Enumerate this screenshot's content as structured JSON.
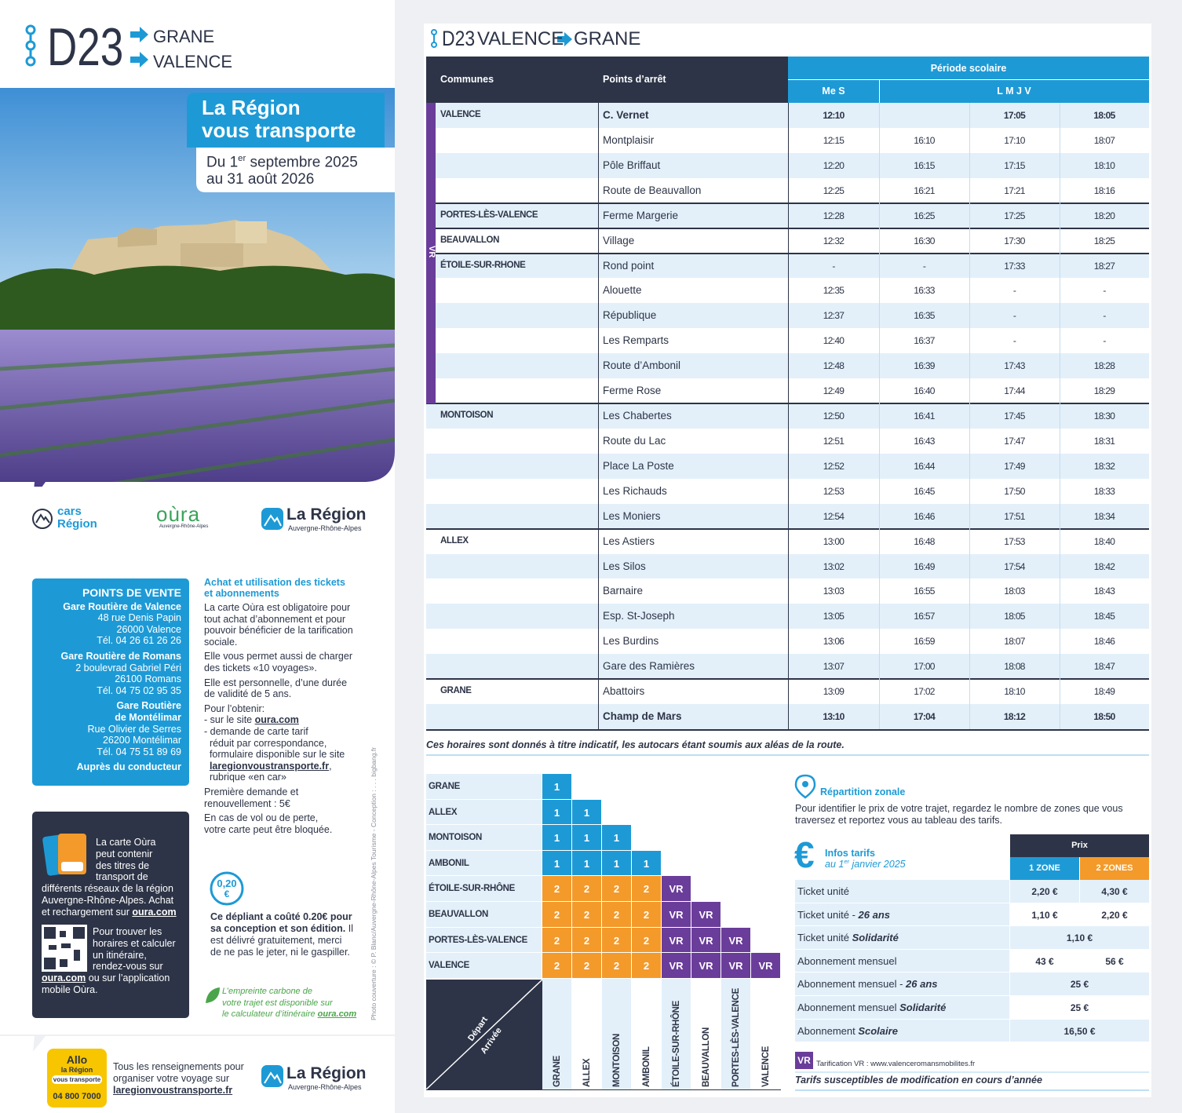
{
  "header": {
    "line": "D23",
    "destinations": [
      "GRANE",
      "VALENCE"
    ]
  },
  "banner": {
    "title": [
      "La Région",
      "vous transporte"
    ],
    "validity": [
      [
        "Du 1",
        {
          "sup": "er"
        },
        " septembre 2025"
      ],
      "au 31 août 2026"
    ]
  },
  "logos": {
    "cars": [
      "cars",
      "Région"
    ],
    "oura": "oùra",
    "oura_sub": "Auvergne-Rhône-Alpes",
    "region": "La Région",
    "region_sub": "Auvergne-Rhône-Alpes"
  },
  "sales": {
    "title": "POINTS DE VENTE",
    "sections": [
      {
        "name": [
          "Gare Routière de Valence"
        ],
        "lines": [
          "48 rue Denis Papin",
          "26000 Valence",
          "Tél. 04 26 61 26 26"
        ]
      },
      {
        "name": [
          "Gare Routière de Romans"
        ],
        "lines": [
          "2 boulevrad Gabriel Péri",
          "26100 Romans",
          "Tél. 04 75 02 95 35"
        ]
      },
      {
        "name": [
          "Gare Routière",
          "de Montélimar"
        ],
        "lines": [
          "Rue Olivier de Serres",
          "26200 Montélimar",
          "Tél. 04 75 51 89 69"
        ]
      }
    ],
    "footer": "Auprès du conducteur"
  },
  "purchase": {
    "title": [
      "Achat et utilisation des tickets",
      "et abonnements"
    ],
    "paragraphs": [
      [
        "La carte Oùra est obligatoire pour",
        "tout achat d’abonnement et pour",
        "pouvoir bénéficier de la tarification",
        "sociale."
      ],
      [
        "Elle vous permet aussi de charger",
        "des tickets «10 voyages»."
      ],
      [
        "Elle est personnelle, d’une durée",
        "de validité de 5 ans."
      ],
      [
        "Pour l’obtenir:",
        [
          "- sur le site ",
          {
            "u": "oura.com"
          }
        ],
        "- demande de carte tarif",
        "  réduit par correspondance,",
        "  formulaire disponible sur le site",
        [
          "  ",
          {
            "u": "laregionvoustransporte.fr"
          },
          ","
        ],
        "  rubrique «en car»"
      ],
      [
        "Première demande et",
        "renouvellement : 5€"
      ],
      [
        "En cas de vol ou de perte,",
        "votre carte peut être bloquée."
      ]
    ]
  },
  "card_box": {
    "top": [
      "La carte Oùra",
      "peut contenir",
      "des titres de",
      "transport de"
    ],
    "middle": [
      "différents réseaux de la région",
      "Auvergne-Rhône-Alpes. Achat",
      [
        "et rechargement sur ",
        {
          "u": "oura.com"
        }
      ]
    ],
    "qr": [
      "Pour trouver les",
      "horaires et calculer",
      "un itinéraire,",
      "rendez-vous sur"
    ],
    "bottom": [
      [
        {
          "u": "oura.com"
        },
        " ou sur l’application"
      ],
      "mobile Oùra."
    ]
  },
  "cost": {
    "amount": "0,20",
    "currency": "€",
    "lines": [
      [
        {
          "b": "Ce dépliant a coûté 0.20€ pour"
        }
      ],
      [
        {
          "b": "sa conception et son édition."
        },
        " Il"
      ],
      "est délivré gratuitement, merci",
      "de ne pas le jeter, ni le gaspiller."
    ]
  },
  "carbon": {
    "lines": [
      "L’empreinte carbone de",
      "votre trajet est disponible sur",
      [
        "le calculateur d’itinéraire ",
        {
          "u": "oura.com"
        }
      ]
    ]
  },
  "credit": "Photo couverture : © P. Blanc/Auvergne-Rhône-Alpes Tourisme - Conception : . . . bigbang.fr",
  "allo": {
    "badge": [
      "Allo",
      "la Région",
      "vous transporte"
    ],
    "phone": "04 800 7000",
    "lines": [
      "Tous les renseignements pour",
      "organiser votre voyage sur",
      [
        {
          "u": "laregionvoustransporte.fr"
        }
      ]
    ]
  },
  "footer_logo": {
    "name": "La Région",
    "sub": "Auvergne-Rhône-Alpes"
  },
  "timetable": {
    "title": {
      "line": "D23",
      "from": "VALENCE",
      "to": "GRANE"
    },
    "columns": {
      "commune": "Communes",
      "stop": "Points d’arrêt",
      "period": "Période scolaire",
      "days": [
        "Me S",
        "L M J V"
      ]
    },
    "vr_label": "VR",
    "rows": [
      {
        "commune": "VALENCE",
        "stop": "C. Vernet",
        "times": [
          "12:10",
          null,
          "17:05",
          "18:05"
        ]
      },
      {
        "stop": "Montplaisir",
        "times": [
          "12:15",
          "16:10",
          "17:10",
          "18:07"
        ]
      },
      {
        "stop": "Pôle Briffaut",
        "times": [
          "12:20",
          "16:15",
          "17:15",
          "18:10"
        ]
      },
      {
        "stop": "Route de Beauvallon",
        "times": [
          "12:25",
          "16:21",
          "17:21",
          "18:16"
        ]
      },
      {
        "commune": "PORTES-LÈS-VALENCE",
        "stop": "Ferme Margerie",
        "times": [
          "12:28",
          "16:25",
          "17:25",
          "18:20"
        ]
      },
      {
        "commune": "BEAUVALLON",
        "stop": "Village",
        "times": [
          "12:32",
          "16:30",
          "17:30",
          "18:25"
        ]
      },
      {
        "commune": "ÉTOILE-SUR-RHONE",
        "stop": "Rond point",
        "times": [
          "-",
          "-",
          "17:33",
          "18:27"
        ]
      },
      {
        "stop": "Alouette",
        "times": [
          "12:35",
          "16:33",
          "-",
          "-"
        ]
      },
      {
        "stop": "République",
        "times": [
          "12:37",
          "16:35",
          "-",
          "-"
        ]
      },
      {
        "stop": "Les Remparts",
        "times": [
          "12:40",
          "16:37",
          "-",
          "-"
        ]
      },
      {
        "stop": "Route d’Ambonil",
        "times": [
          "12:48",
          "16:39",
          "17:43",
          "18:28"
        ]
      },
      {
        "stop": "Ferme Rose",
        "times": [
          "12:49",
          "16:40",
          "17:44",
          "18:29"
        ]
      },
      {
        "commune": "MONTOISON",
        "stop": "Les Chabertes",
        "times": [
          "12:50",
          "16:41",
          "17:45",
          "18:30"
        ]
      },
      {
        "stop": "Route du Lac",
        "times": [
          "12:51",
          "16:43",
          "17:47",
          "18:31"
        ]
      },
      {
        "stop": "Place La Poste",
        "times": [
          "12:52",
          "16:44",
          "17:49",
          "18:32"
        ]
      },
      {
        "stop": "Les Richauds",
        "times": [
          "12:53",
          "16:45",
          "17:50",
          "18:33"
        ]
      },
      {
        "stop": "Les Moniers",
        "times": [
          "12:54",
          "16:46",
          "17:51",
          "18:34"
        ]
      },
      {
        "commune": "ALLEX",
        "stop": "Les Astiers",
        "times": [
          "13:00",
          "16:48",
          "17:53",
          "18:40"
        ]
      },
      {
        "stop": "Les Silos",
        "times": [
          "13:02",
          "16:49",
          "17:54",
          "18:42"
        ]
      },
      {
        "stop": "Barnaire",
        "times": [
          "13:03",
          "16:55",
          "18:03",
          "18:43"
        ]
      },
      {
        "stop": "Esp. St-Joseph",
        "times": [
          "13:05",
          "16:57",
          "18:05",
          "18:45"
        ]
      },
      {
        "stop": "Les Burdins",
        "times": [
          "13:06",
          "16:59",
          "18:07",
          "18:46"
        ]
      },
      {
        "stop": "Gare des Ramières",
        "times": [
          "13:07",
          "17:00",
          "18:08",
          "18:47"
        ]
      },
      {
        "commune": "GRANE",
        "stop": "Abattoirs",
        "times": [
          "13:09",
          "17:02",
          "18:10",
          "18:49"
        ]
      },
      {
        "stop": "Champ de Mars",
        "times": [
          "13:10",
          "17:04",
          "18:12",
          "18:50"
        ]
      }
    ],
    "note": "Ces horaires sont donnés à titre indicatif, les autocars étant soumis aux aléas de la route."
  },
  "zones": {
    "colors": {
      "1": "#1d9ad6",
      "2": "#f39a2b",
      "VR": "#6a3d9a"
    },
    "rows": [
      {
        "name": "GRANE",
        "cells": [
          "1"
        ]
      },
      {
        "name": "ALLEX",
        "cells": [
          "1",
          "1"
        ]
      },
      {
        "name": "MONTOISON",
        "cells": [
          "1",
          "1",
          "1"
        ]
      },
      {
        "name": "AMBONIL",
        "cells": [
          "1",
          "1",
          "1",
          "1"
        ]
      },
      {
        "name": "ÉTOILE-SUR-RHÔNE",
        "cells": [
          "2",
          "2",
          "2",
          "2",
          "VR"
        ]
      },
      {
        "name": "BEAUVALLON",
        "cells": [
          "2",
          "2",
          "2",
          "2",
          "VR",
          "VR"
        ]
      },
      {
        "name": "PORTES-LÈS-VALENCE",
        "cells": [
          "2",
          "2",
          "2",
          "2",
          "VR",
          "VR",
          "VR"
        ]
      },
      {
        "name": "VALENCE",
        "cells": [
          "2",
          "2",
          "2",
          "2",
          "VR",
          "VR",
          "VR",
          "VR"
        ]
      }
    ],
    "corner": [
      "Départ",
      "Arrivée"
    ],
    "columns": [
      "GRANE",
      "ALLEX",
      "MONTOISON",
      "AMBONIL",
      "ÉTOILE-SUR-RHÔNE",
      "BEAUVALLON",
      "PORTES-LÈS-VALENCE",
      "VALENCE"
    ]
  },
  "fares": {
    "zonal_title": "Répartition zonale",
    "zonal_text": [
      "Pour identifier le prix de votre trajet, regardez le nombre de zones que vous",
      "traversez et reportez vous au tableau des tarifs."
    ],
    "info_symbol": "€",
    "info_title": "Infos tarifs",
    "info_date": [
      "au 1",
      {
        "sup": "er"
      },
      " janvier 2025"
    ],
    "price_header": "Prix",
    "zone_headers": [
      "1 ZONE",
      "2 ZONES"
    ],
    "rows": [
      {
        "label": [
          "Ticket unité"
        ],
        "prices": [
          "2,20 €",
          "4,30 €"
        ]
      },
      {
        "label": [
          "Ticket unité - ",
          {
            "i": "26 ans"
          }
        ],
        "prices": [
          "1,10 €",
          "2,20 €"
        ]
      },
      {
        "label": [
          "Ticket unité ",
          {
            "i": "Solidarité"
          }
        ],
        "prices": [
          "1,10 €"
        ]
      },
      {
        "label": [
          "Abonnement mensuel"
        ],
        "prices": [
          "43 €",
          "56 €"
        ]
      },
      {
        "label": [
          "Abonnement mensuel - ",
          {
            "i": "26 ans"
          }
        ],
        "prices": [
          "25 €"
        ]
      },
      {
        "label": [
          "Abonnement mensuel ",
          {
            "i": "Solidarité"
          }
        ],
        "prices": [
          "25 €"
        ]
      },
      {
        "label": [
          "Abonnement ",
          {
            "i": "Scolaire"
          }
        ],
        "prices": [
          "16,50 €"
        ]
      }
    ],
    "vr_badge": "VR",
    "vr_text": "Tarification VR : www.valenceromansmobilites.fr",
    "disclaimer": "Tarifs susceptibles de modification en cours d’année"
  }
}
